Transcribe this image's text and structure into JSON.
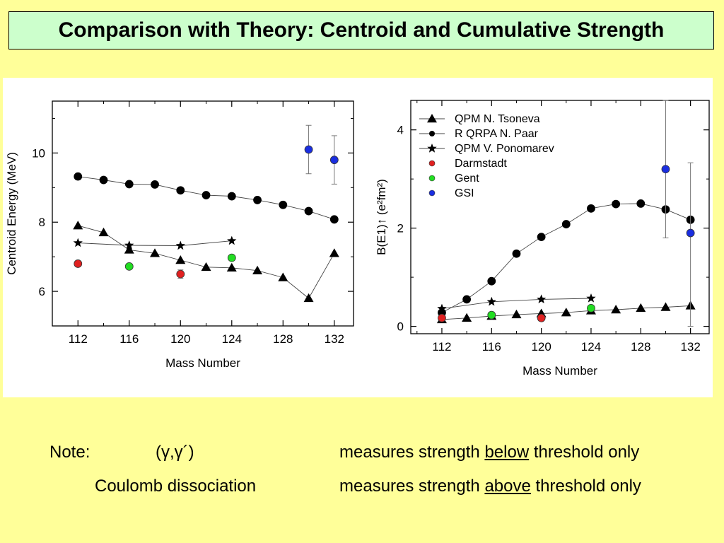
{
  "title": "Comparison with Theory: Centroid and Cumulative Strength",
  "chart_data": [
    {
      "type": "scatter",
      "xlabel": "Mass Number",
      "ylabel": "Centroid Energy (MeV)",
      "xlim": [
        110,
        133.5
      ],
      "ylim": [
        5,
        11.5
      ],
      "xticks": [
        112,
        116,
        120,
        124,
        128,
        132
      ],
      "yticks": [
        6,
        8,
        10
      ],
      "series": [
        {
          "key": "qpm_tsoneva",
          "marker": "triangle",
          "color": "#000000",
          "line": true,
          "x": [
            112,
            114,
            116,
            118,
            120,
            122,
            124,
            126,
            128,
            130,
            132
          ],
          "y": [
            7.9,
            7.7,
            7.2,
            7.1,
            6.9,
            6.7,
            6.68,
            6.6,
            6.4,
            5.8,
            7.1
          ]
        },
        {
          "key": "rqrpa_paar",
          "marker": "circle",
          "color": "#000000",
          "line": true,
          "x": [
            112,
            114,
            116,
            118,
            120,
            122,
            124,
            126,
            128,
            130,
            132
          ],
          "y": [
            9.32,
            9.22,
            9.1,
            9.09,
            8.92,
            8.78,
            8.75,
            8.64,
            8.5,
            8.32,
            8.08
          ]
        },
        {
          "key": "qpm_ponomarev",
          "marker": "star",
          "color": "#000000",
          "line": true,
          "x": [
            112,
            116,
            120,
            124
          ],
          "y": [
            7.4,
            7.33,
            7.32,
            7.46
          ]
        },
        {
          "key": "darmstadt",
          "marker": "circle",
          "color": "#e02020",
          "line": false,
          "x": [
            112,
            120
          ],
          "y": [
            6.8,
            6.5
          ],
          "err": [
            0.08,
            0.12
          ]
        },
        {
          "key": "gent",
          "marker": "circle",
          "color": "#22dd22",
          "line": false,
          "x": [
            116,
            124
          ],
          "y": [
            6.72,
            6.97
          ]
        },
        {
          "key": "gsi",
          "marker": "circle",
          "color": "#1a2ee0",
          "line": false,
          "x": [
            130,
            132
          ],
          "y": [
            10.1,
            9.8
          ],
          "err": [
            0.7,
            0.7
          ]
        }
      ]
    },
    {
      "type": "scatter",
      "xlabel": "Mass Number",
      "ylabel": "B(E1)↑ (e²fm²)",
      "xlim": [
        109.5,
        133.5
      ],
      "ylim": [
        -0.15,
        4.6
      ],
      "xticks": [
        112,
        116,
        120,
        124,
        128,
        132
      ],
      "yticks": [
        0,
        2,
        4
      ],
      "legend_position": "top-left",
      "series": [
        {
          "key": "qpm_tsoneva",
          "name": "QPM  N. Tsoneva",
          "marker": "triangle",
          "color": "#000000",
          "line": true,
          "x": [
            112,
            114,
            116,
            118,
            120,
            122,
            124,
            126,
            128,
            130,
            132
          ],
          "y": [
            0.14,
            0.17,
            0.21,
            0.24,
            0.26,
            0.28,
            0.32,
            0.34,
            0.37,
            0.39,
            0.42
          ]
        },
        {
          "key": "rqrpa_paar",
          "name": "R QRPA N. Paar",
          "marker": "circle",
          "color": "#000000",
          "line": true,
          "x": [
            112,
            114,
            116,
            118,
            120,
            122,
            124,
            126,
            128,
            130,
            132
          ],
          "y": [
            0.28,
            0.55,
            0.92,
            1.48,
            1.82,
            2.08,
            2.4,
            2.49,
            2.5,
            2.38,
            2.17
          ]
        },
        {
          "key": "qpm_ponomarev",
          "name": "QPM V. Ponomarev",
          "marker": "star",
          "color": "#000000",
          "line": true,
          "x": [
            112,
            116,
            120,
            124
          ],
          "y": [
            0.36,
            0.5,
            0.55,
            0.57
          ]
        },
        {
          "key": "darmstadt",
          "name": "Darmstadt",
          "marker": "circle",
          "color": "#e02020",
          "line": false,
          "x": [
            112,
            120
          ],
          "y": [
            0.17,
            0.17
          ]
        },
        {
          "key": "gent",
          "name": "Gent",
          "marker": "circle",
          "color": "#22dd22",
          "line": false,
          "x": [
            116,
            124
          ],
          "y": [
            0.23,
            0.37
          ]
        },
        {
          "key": "gsi",
          "name": "GSI",
          "marker": "circle",
          "color": "#1a2ee0",
          "line": false,
          "x": [
            130,
            132
          ],
          "y": [
            3.2,
            1.9
          ],
          "err_low": [
            1.4,
            1.9
          ],
          "err_high": [
            1.4,
            1.43
          ]
        }
      ]
    }
  ],
  "notes": {
    "note_label": "Note:",
    "row1_method": "(γ,γ´)",
    "row1_prefix": "measures strength",
    "row1_keyword": "below",
    "row1_suffix": "threshold only",
    "row2_method": "Coulomb dissociation",
    "row2_prefix": "measures strength",
    "row2_keyword": "above",
    "row2_suffix": "threshold only"
  }
}
